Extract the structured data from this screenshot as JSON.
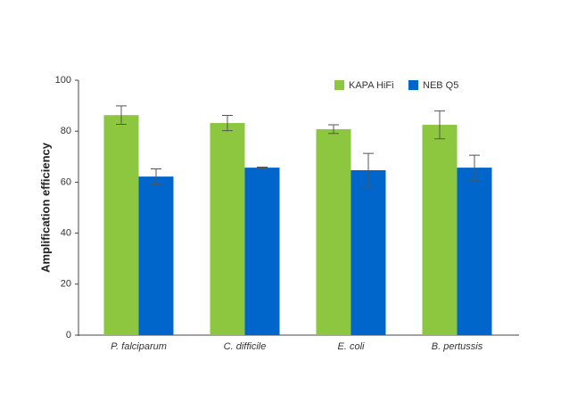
{
  "chart_data": {
    "type": "bar",
    "ylabel": "Amplification efficiency",
    "categories": [
      "P. falciparum",
      "C. difficile",
      "E. coli",
      "B. pertussis"
    ],
    "series": [
      {
        "name": "KAPA HiFi",
        "color": "#8dc63f",
        "values": [
          86.3,
          83.2,
          80.8,
          82.5
        ],
        "errors": [
          3.6,
          3.0,
          1.7,
          5.5
        ]
      },
      {
        "name": "NEB Q5",
        "color": "#0066cc",
        "values": [
          62.2,
          65.7,
          64.7,
          65.7
        ],
        "errors": [
          3.0,
          0.2,
          6.6,
          4.9
        ]
      }
    ],
    "ylim": [
      0,
      100
    ],
    "yticks": [
      0,
      20,
      40,
      60,
      80,
      100
    ],
    "grid": false,
    "legend": "top-right"
  }
}
